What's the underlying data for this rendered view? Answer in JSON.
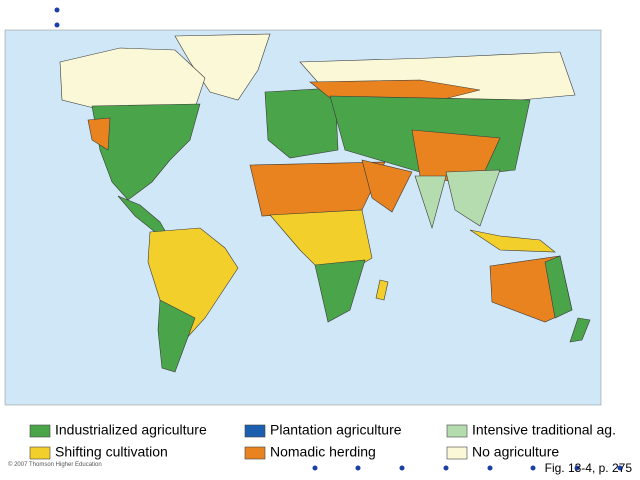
{
  "legend": [
    {
      "label": "Industrialized agriculture",
      "color": "#4aa54a"
    },
    {
      "label": "Plantation agriculture",
      "color": "#1b5fae"
    },
    {
      "label": "Intensive traditional ag.",
      "color": "#b5dcae"
    },
    {
      "label": "Shifting cultivation",
      "color": "#f2cf2a"
    },
    {
      "label": "Nomadic herding",
      "color": "#e8831f"
    },
    {
      "label": "No agriculture",
      "color": "#fbf8d8"
    }
  ],
  "credit": "© 2007 Thomson Higher Education",
  "caption": "Fig. 13-4, p. 275"
}
